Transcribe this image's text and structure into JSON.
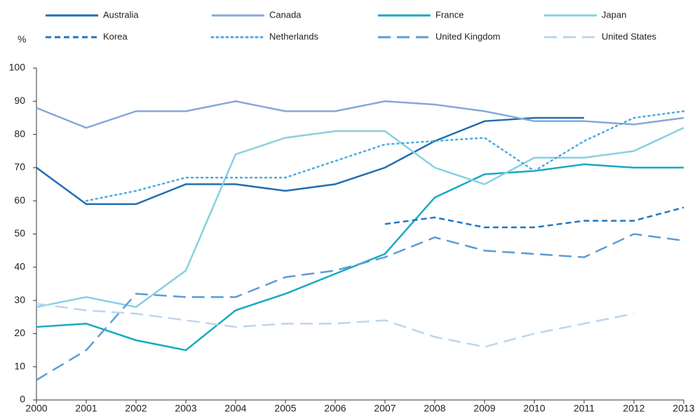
{
  "chart_data": {
    "type": "line",
    "y_label": "%",
    "x": [
      2000,
      2001,
      2002,
      2003,
      2004,
      2005,
      2006,
      2007,
      2008,
      2009,
      2010,
      2011,
      2012,
      2013
    ],
    "xlim": [
      2000,
      2013
    ],
    "ylim": [
      0,
      100
    ],
    "yticks": [
      0,
      10,
      20,
      30,
      40,
      50,
      60,
      70,
      80,
      90,
      100
    ],
    "grid": false,
    "legend": "top",
    "series": [
      {
        "name": "Australia",
        "color": "#1f6db3",
        "dash": "solid",
        "values": [
          70,
          59,
          59,
          65,
          65,
          63,
          65,
          70,
          78,
          84,
          85,
          85,
          null,
          null
        ]
      },
      {
        "name": "Canada",
        "color": "#86a8d8",
        "dash": "solid",
        "values": [
          88,
          82,
          87,
          87,
          90,
          87,
          87,
          90,
          89,
          87,
          84,
          84,
          83,
          85
        ]
      },
      {
        "name": "France",
        "color": "#16aac2",
        "dash": "solid",
        "values": [
          22,
          23,
          18,
          15,
          27,
          32,
          38,
          44,
          61,
          68,
          69,
          71,
          70,
          70
        ]
      },
      {
        "name": "Japan",
        "color": "#86d0e3",
        "dash": "solid",
        "values": [
          28,
          31,
          28,
          39,
          74,
          79,
          81,
          81,
          70,
          65,
          73,
          73,
          75,
          82
        ]
      },
      {
        "name": "Korea",
        "color": "#1f78c4",
        "dash": "dashed",
        "values": [
          null,
          null,
          null,
          null,
          null,
          null,
          null,
          53,
          55,
          52,
          52,
          54,
          54,
          58
        ]
      },
      {
        "name": "Netherlands",
        "color": "#4aa9e0",
        "dash": "dotted",
        "values": [
          null,
          60,
          63,
          67,
          67,
          67,
          72,
          77,
          78,
          79,
          69,
          78,
          85,
          87
        ]
      },
      {
        "name": "United Kingdom",
        "color": "#5e9bd6",
        "dash": "longdash",
        "values": [
          6,
          15,
          32,
          31,
          31,
          37,
          39,
          43,
          49,
          45,
          44,
          43,
          50,
          48
        ]
      },
      {
        "name": "United States",
        "color": "#bcd5ee",
        "dash": "longdash",
        "values": [
          29,
          27,
          26,
          24,
          22,
          23,
          23,
          24,
          19,
          16,
          20,
          23,
          26,
          null
        ]
      }
    ]
  }
}
